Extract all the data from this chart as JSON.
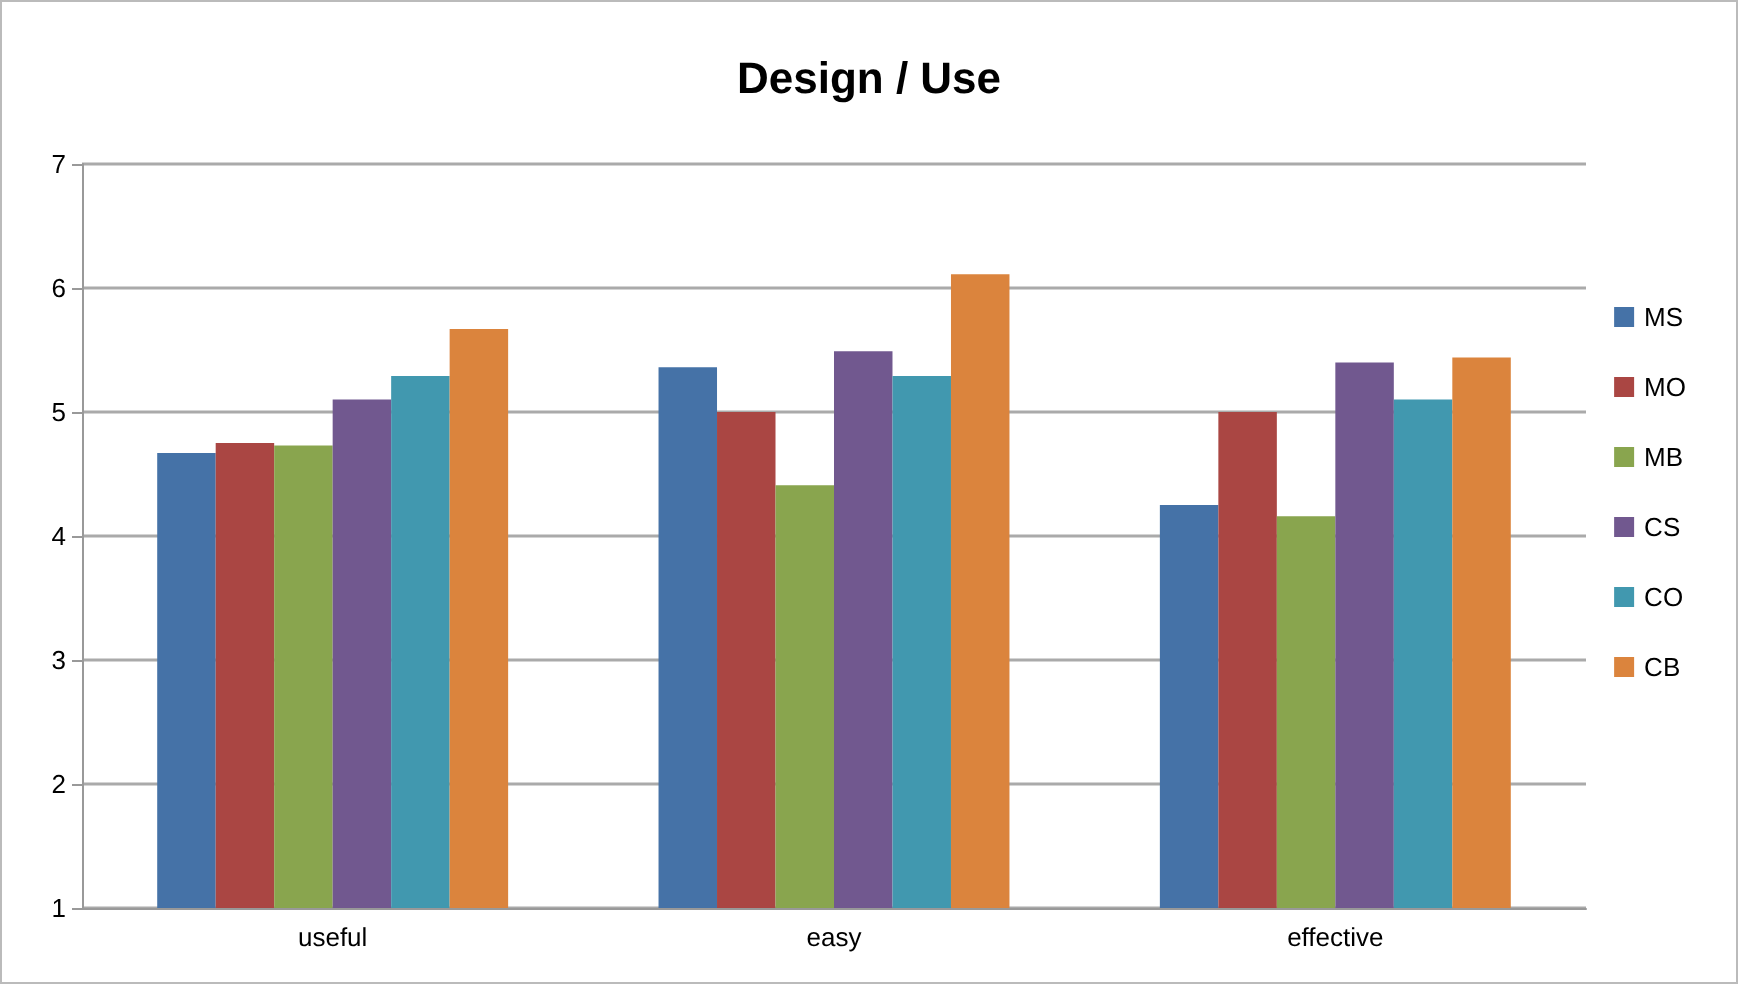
{
  "chart_data": {
    "type": "bar",
    "title": "Design / Use",
    "categories": [
      "useful",
      "easy",
      "effective"
    ],
    "series": [
      {
        "name": "MS",
        "color": "#4572a7",
        "values": [
          4.67,
          5.36,
          4.25
        ]
      },
      {
        "name": "MO",
        "color": "#aa4643",
        "values": [
          4.75,
          5.0,
          5.0
        ]
      },
      {
        "name": "MB",
        "color": "#89a54e",
        "values": [
          4.73,
          4.41,
          4.16
        ]
      },
      {
        "name": "CS",
        "color": "#71588f",
        "values": [
          5.1,
          5.49,
          5.4
        ]
      },
      {
        "name": "CO",
        "color": "#4198af",
        "values": [
          5.29,
          5.29,
          5.1
        ]
      },
      {
        "name": "CB",
        "color": "#db843d",
        "values": [
          5.67,
          6.11,
          5.44
        ]
      }
    ],
    "ylim": [
      1,
      7
    ],
    "yticks": [
      1,
      2,
      3,
      4,
      5,
      6,
      7
    ],
    "grid": "y",
    "legend": "right"
  }
}
